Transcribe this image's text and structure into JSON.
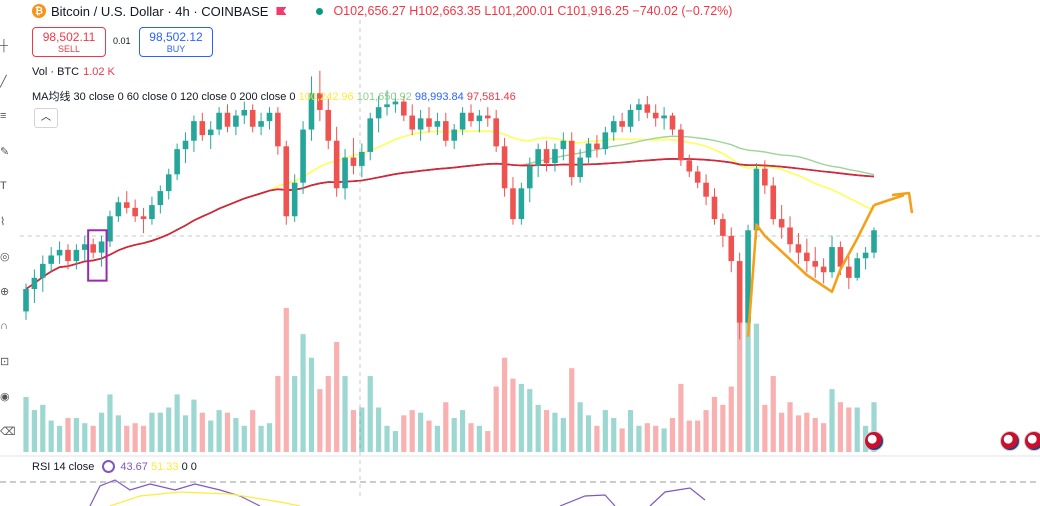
{
  "header": {
    "symbol": "Bitcoin / U.S. Dollar · 4h · COINBASE",
    "open": "O102,656.27",
    "high": "H102,663.35",
    "low": "L101,200.01",
    "close": "C101,916.25",
    "change": "−740.02 (−0.72%)"
  },
  "trade": {
    "sell_price": "98,502.11",
    "sell_label": "SELL",
    "spread": "0.01",
    "buy_price": "98,502.12",
    "buy_label": "BUY"
  },
  "volume": {
    "label": "Vol · BTC",
    "value": "1.02 K"
  },
  "ma": {
    "label": "MA均线 30 close 0 60 close 0 120 close 0 200 close 0",
    "v1": "100,242.96",
    "v2": "101,650.92",
    "v3": "98,993.84",
    "v4": "97,581.46"
  },
  "rsi": {
    "label": "RSI 14 close",
    "v1": "43.67",
    "v2": "51.33",
    "zeros": "0 0"
  },
  "colors": {
    "up": "#26a69a",
    "down": "#ef5350",
    "ma30": "#ffff55",
    "ma60": "#9ed39a",
    "ma120": "#2046b8",
    "ma200": "#e0232e",
    "annotation": "#f5a01a",
    "marker": "#9c27b0"
  },
  "chart_data": {
    "type": "candlestick",
    "timeframe": "4h",
    "y_reference": 99000,
    "candles": [
      [
        95500,
        96500,
        95200,
        96300
      ],
      [
        96300,
        97000,
        95800,
        96700
      ],
      [
        96700,
        97500,
        96200,
        97200
      ],
      [
        97200,
        97800,
        96900,
        97500
      ],
      [
        97500,
        98000,
        97200,
        97700
      ],
      [
        97700,
        97900,
        97000,
        97300
      ],
      [
        97300,
        97900,
        97000,
        97700
      ],
      [
        97700,
        98200,
        97300,
        97900
      ],
      [
        97900,
        98100,
        97400,
        97600
      ],
      [
        97600,
        98200,
        97100,
        98000
      ],
      [
        98000,
        99100,
        97800,
        98900
      ],
      [
        98900,
        99600,
        98700,
        99400
      ],
      [
        99400,
        99800,
        99000,
        99200
      ],
      [
        99200,
        99500,
        98700,
        98900
      ],
      [
        98900,
        99200,
        98300,
        98800
      ],
      [
        98800,
        99600,
        98600,
        99300
      ],
      [
        99300,
        100000,
        99000,
        99800
      ],
      [
        99800,
        100600,
        99500,
        100400
      ],
      [
        100400,
        101500,
        100200,
        101300
      ],
      [
        101300,
        101900,
        100800,
        101600
      ],
      [
        101600,
        102500,
        101200,
        102300
      ],
      [
        102300,
        102600,
        101600,
        101800
      ],
      [
        101800,
        102300,
        101300,
        102000
      ],
      [
        102000,
        102800,
        101800,
        102600
      ],
      [
        102600,
        102900,
        101900,
        102100
      ],
      [
        102100,
        102700,
        101800,
        102500
      ],
      [
        102500,
        103000,
        102200,
        102700
      ],
      [
        102700,
        102900,
        101900,
        102100
      ],
      [
        102100,
        102600,
        101800,
        102300
      ],
      [
        102300,
        102800,
        102000,
        102600
      ],
      [
        102600,
        102800,
        101100,
        101400
      ],
      [
        101400,
        101600,
        98600,
        98900
      ],
      [
        98900,
        100400,
        98700,
        100100
      ],
      [
        100100,
        102300,
        99700,
        102000
      ],
      [
        102000,
        103900,
        101600,
        103300
      ],
      [
        103300,
        104100,
        102300,
        102700
      ],
      [
        102700,
        103100,
        101300,
        101600
      ],
      [
        101600,
        102100,
        99600,
        99900
      ],
      [
        99900,
        101300,
        99500,
        101000
      ],
      [
        101000,
        101700,
        100400,
        100700
      ],
      [
        100700,
        101500,
        100300,
        101200
      ],
      [
        101200,
        102600,
        100900,
        102400
      ],
      [
        102400,
        103200,
        101900,
        102800
      ],
      [
        102800,
        103400,
        102500,
        102900
      ],
      [
        102900,
        103300,
        102600,
        103000
      ],
      [
        103000,
        103200,
        102300,
        102500
      ],
      [
        102500,
        102900,
        101800,
        102000
      ],
      [
        102000,
        102700,
        101600,
        102400
      ],
      [
        102400,
        102800,
        101900,
        102100
      ],
      [
        102100,
        102600,
        101800,
        102300
      ],
      [
        102300,
        102600,
        101400,
        101600
      ],
      [
        101600,
        102200,
        101300,
        102000
      ],
      [
        102000,
        102800,
        101800,
        102600
      ],
      [
        102600,
        102900,
        102100,
        102300
      ],
      [
        102300,
        102700,
        101900,
        102500
      ],
      [
        102500,
        102800,
        102100,
        102400
      ],
      [
        102400,
        102700,
        101200,
        101400
      ],
      [
        101400,
        101700,
        99600,
        99900
      ],
      [
        99900,
        100300,
        98600,
        98800
      ],
      [
        98800,
        100100,
        98600,
        99900
      ],
      [
        99900,
        101000,
        99400,
        100700
      ],
      [
        100700,
        101500,
        100300,
        101300
      ],
      [
        101300,
        101600,
        100500,
        100800
      ],
      [
        100800,
        101500,
        100500,
        101300
      ],
      [
        101300,
        101900,
        100900,
        101600
      ],
      [
        101600,
        101900,
        100000,
        100300
      ],
      [
        100300,
        101300,
        100100,
        101000
      ],
      [
        101000,
        101700,
        100800,
        101500
      ],
      [
        101500,
        101800,
        101000,
        101300
      ],
      [
        101300,
        102100,
        101100,
        101900
      ],
      [
        101900,
        102500,
        101600,
        102300
      ],
      [
        102300,
        102600,
        101900,
        102100
      ],
      [
        102100,
        102900,
        101900,
        102700
      ],
      [
        102700,
        103100,
        102300,
        102900
      ],
      [
        102900,
        103200,
        102400,
        102600
      ],
      [
        102600,
        102900,
        102100,
        102400
      ],
      [
        102400,
        102800,
        102000,
        102500
      ],
      [
        102500,
        102600,
        101800,
        102000
      ],
      [
        102000,
        102200,
        100700,
        100900
      ],
      [
        100900,
        101100,
        100300,
        100500
      ],
      [
        100500,
        100700,
        99900,
        100100
      ],
      [
        100100,
        100400,
        99300,
        99600
      ],
      [
        99600,
        99900,
        98600,
        98800
      ],
      [
        98800,
        99000,
        97800,
        98200
      ],
      [
        98200,
        98500,
        96900,
        97300
      ],
      [
        97300,
        97600,
        94500,
        95100
      ],
      [
        95100,
        98600,
        95000,
        98400
      ],
      [
        98400,
        100800,
        98100,
        100600
      ],
      [
        100600,
        100900,
        99700,
        100000
      ],
      [
        100000,
        100300,
        98600,
        98800
      ],
      [
        98800,
        99300,
        98100,
        98500
      ],
      [
        98500,
        98900,
        97600,
        97900
      ],
      [
        97900,
        98300,
        97200,
        97600
      ],
      [
        97600,
        98100,
        96900,
        97300
      ],
      [
        97300,
        97800,
        96700,
        97100
      ],
      [
        97100,
        97400,
        96500,
        96900
      ],
      [
        96900,
        98200,
        96700,
        97800
      ],
      [
        97800,
        98000,
        96800,
        97100
      ],
      [
        97100,
        97600,
        96300,
        96700
      ],
      [
        96700,
        97600,
        96600,
        97400
      ],
      [
        97400,
        97800,
        97000,
        97600
      ],
      [
        97600,
        98500,
        97400,
        98400
      ]
    ]
  }
}
